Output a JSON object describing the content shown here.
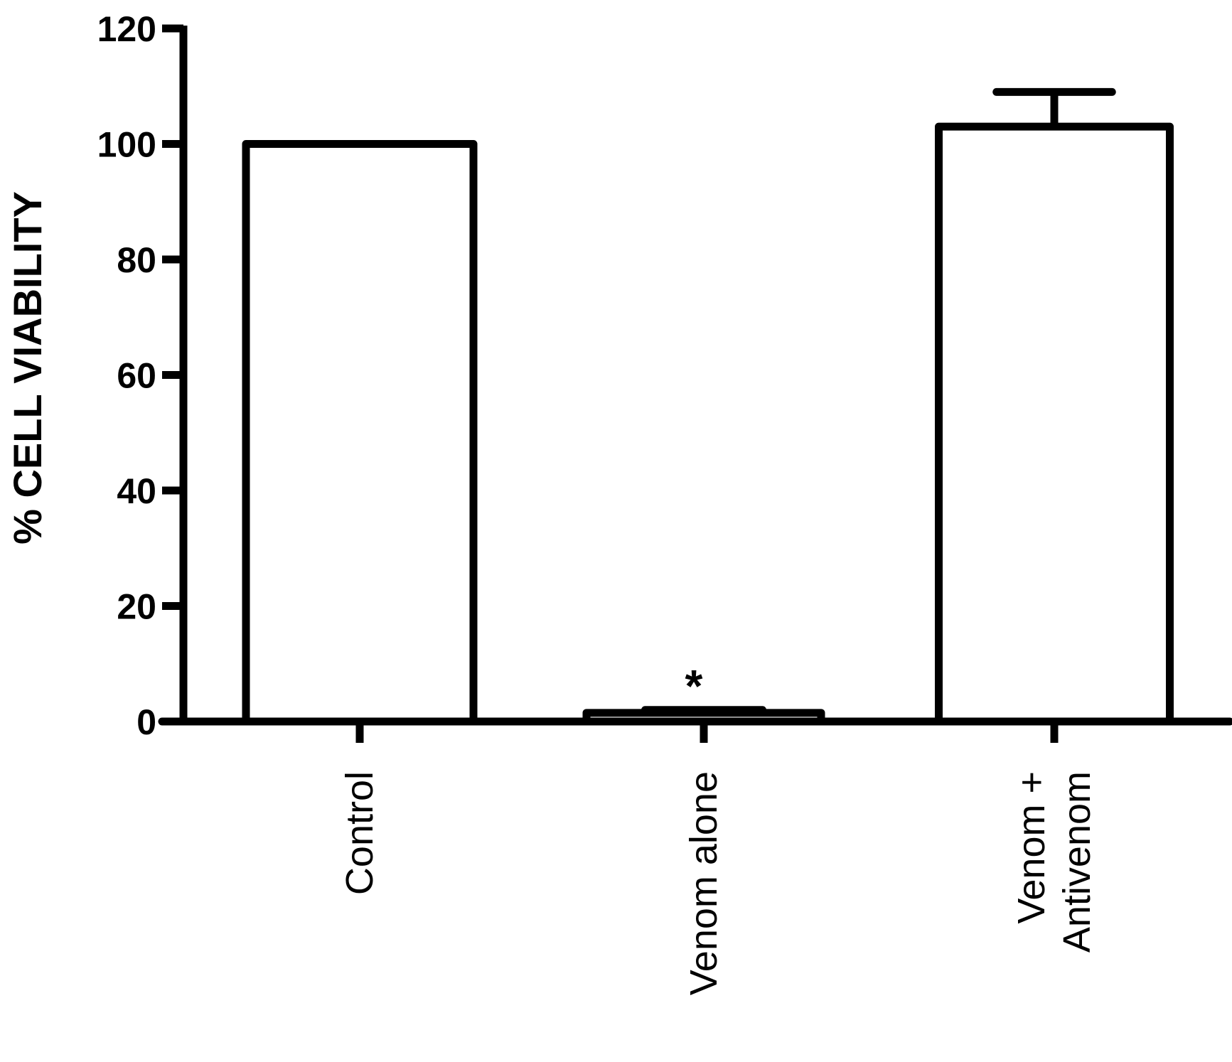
{
  "chart_data": {
    "type": "bar",
    "ylabel": "% CELL VIABILITY",
    "xlabel": "",
    "title": "",
    "categories": [
      [
        "Control"
      ],
      [
        "Venom alone"
      ],
      [
        "Venom +",
        "Antivenom"
      ]
    ],
    "category_names": [
      "Control",
      "Venom alone",
      "Venom + Antivenom"
    ],
    "values": [
      100,
      1.5,
      103
    ],
    "error_upper": [
      0,
      0.5,
      6
    ],
    "annotations": [
      "",
      "*",
      ""
    ],
    "ylim": [
      0,
      120
    ],
    "yticks": [
      0,
      20,
      40,
      60,
      80,
      100,
      120
    ],
    "grid": false,
    "legend": "none",
    "colors": {
      "bar_fill": "#ffffff",
      "bar_stroke": "#000000",
      "axis": "#000000"
    }
  }
}
